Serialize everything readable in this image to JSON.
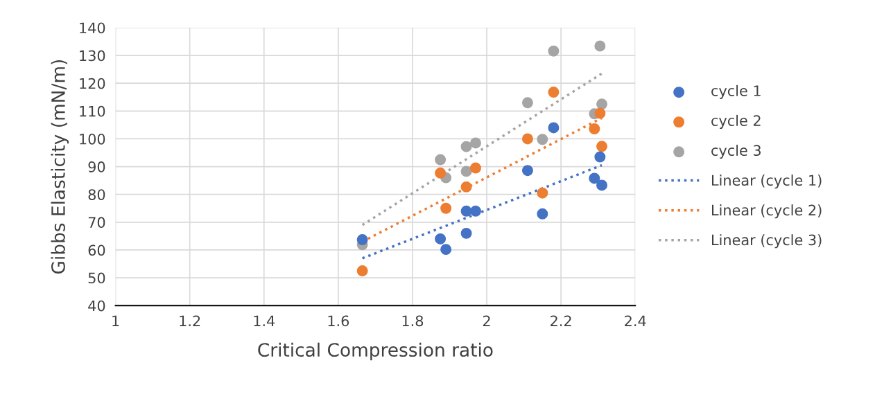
{
  "chart_data": {
    "type": "scatter",
    "xlabel": "Critical Compression ratio",
    "ylabel": "Gibbs Elasticity (mN/m)",
    "xlim": [
      1,
      2.4
    ],
    "xticks": [
      1,
      {
        "value": 1.2,
        "label": "1.2"
      },
      {
        "value": 1.4,
        "label": "1.4"
      },
      {
        "value": 1.6,
        "label": "1.6"
      },
      {
        "value": 1.8,
        "label": "1.8"
      },
      2,
      {
        "value": 2.2,
        "label": "2.2"
      },
      {
        "value": 2.4,
        "label": "2.4"
      }
    ],
    "ylim": [
      40,
      140
    ],
    "yticks": [
      40,
      50,
      60,
      70,
      80,
      90,
      100,
      110,
      120,
      130,
      140
    ],
    "grid": true,
    "legend": "right",
    "marker": "circle",
    "series": [
      {
        "name": "cycle 1",
        "color": "#4472c4",
        "x": [
          1.665,
          1.875,
          1.89,
          1.945,
          1.945,
          1.97,
          2.11,
          2.15,
          2.18,
          2.29,
          2.305,
          2.31
        ],
        "values": [
          63.7,
          64,
          60.2,
          66,
          74,
          74,
          88.6,
          73,
          104,
          85.8,
          93.5,
          83.3
        ]
      },
      {
        "name": "cycle 2",
        "color": "#ed7d31",
        "x": [
          1.665,
          1.875,
          1.89,
          1.945,
          1.97,
          2.11,
          2.15,
          2.18,
          2.29,
          2.305,
          2.31
        ],
        "values": [
          52.5,
          87.7,
          75,
          82.7,
          89.5,
          100,
          80.5,
          116.8,
          103.6,
          109.2,
          97.3
        ]
      },
      {
        "name": "cycle 3",
        "color": "#a5a5a5",
        "x": [
          1.665,
          1.875,
          1.89,
          1.945,
          1.945,
          1.97,
          2.11,
          2.15,
          2.18,
          2.29,
          2.305,
          2.31
        ],
        "values": [
          61.9,
          92.5,
          86,
          97.2,
          88.3,
          98.5,
          113,
          99.8,
          131.6,
          109,
          133.4,
          112.5
        ]
      },
      {
        "name": "Linear (cycle 1)",
        "type": "line",
        "line_style": "dotted",
        "marker": "none",
        "color": "#4472c4",
        "x": [
          1.665,
          2.31
        ],
        "values": [
          57,
          90.5
        ]
      },
      {
        "name": "Linear (cycle 2)",
        "type": "line",
        "line_style": "dotted",
        "marker": "none",
        "color": "#ed7d31",
        "x": [
          1.665,
          2.31
        ],
        "values": [
          63,
          107.5
        ]
      },
      {
        "name": "Linear (cycle 3)",
        "type": "line",
        "line_style": "dotted",
        "marker": "none",
        "color": "#a5a5a5",
        "x": [
          1.665,
          2.31
        ],
        "values": [
          69,
          123.5
        ]
      }
    ]
  }
}
